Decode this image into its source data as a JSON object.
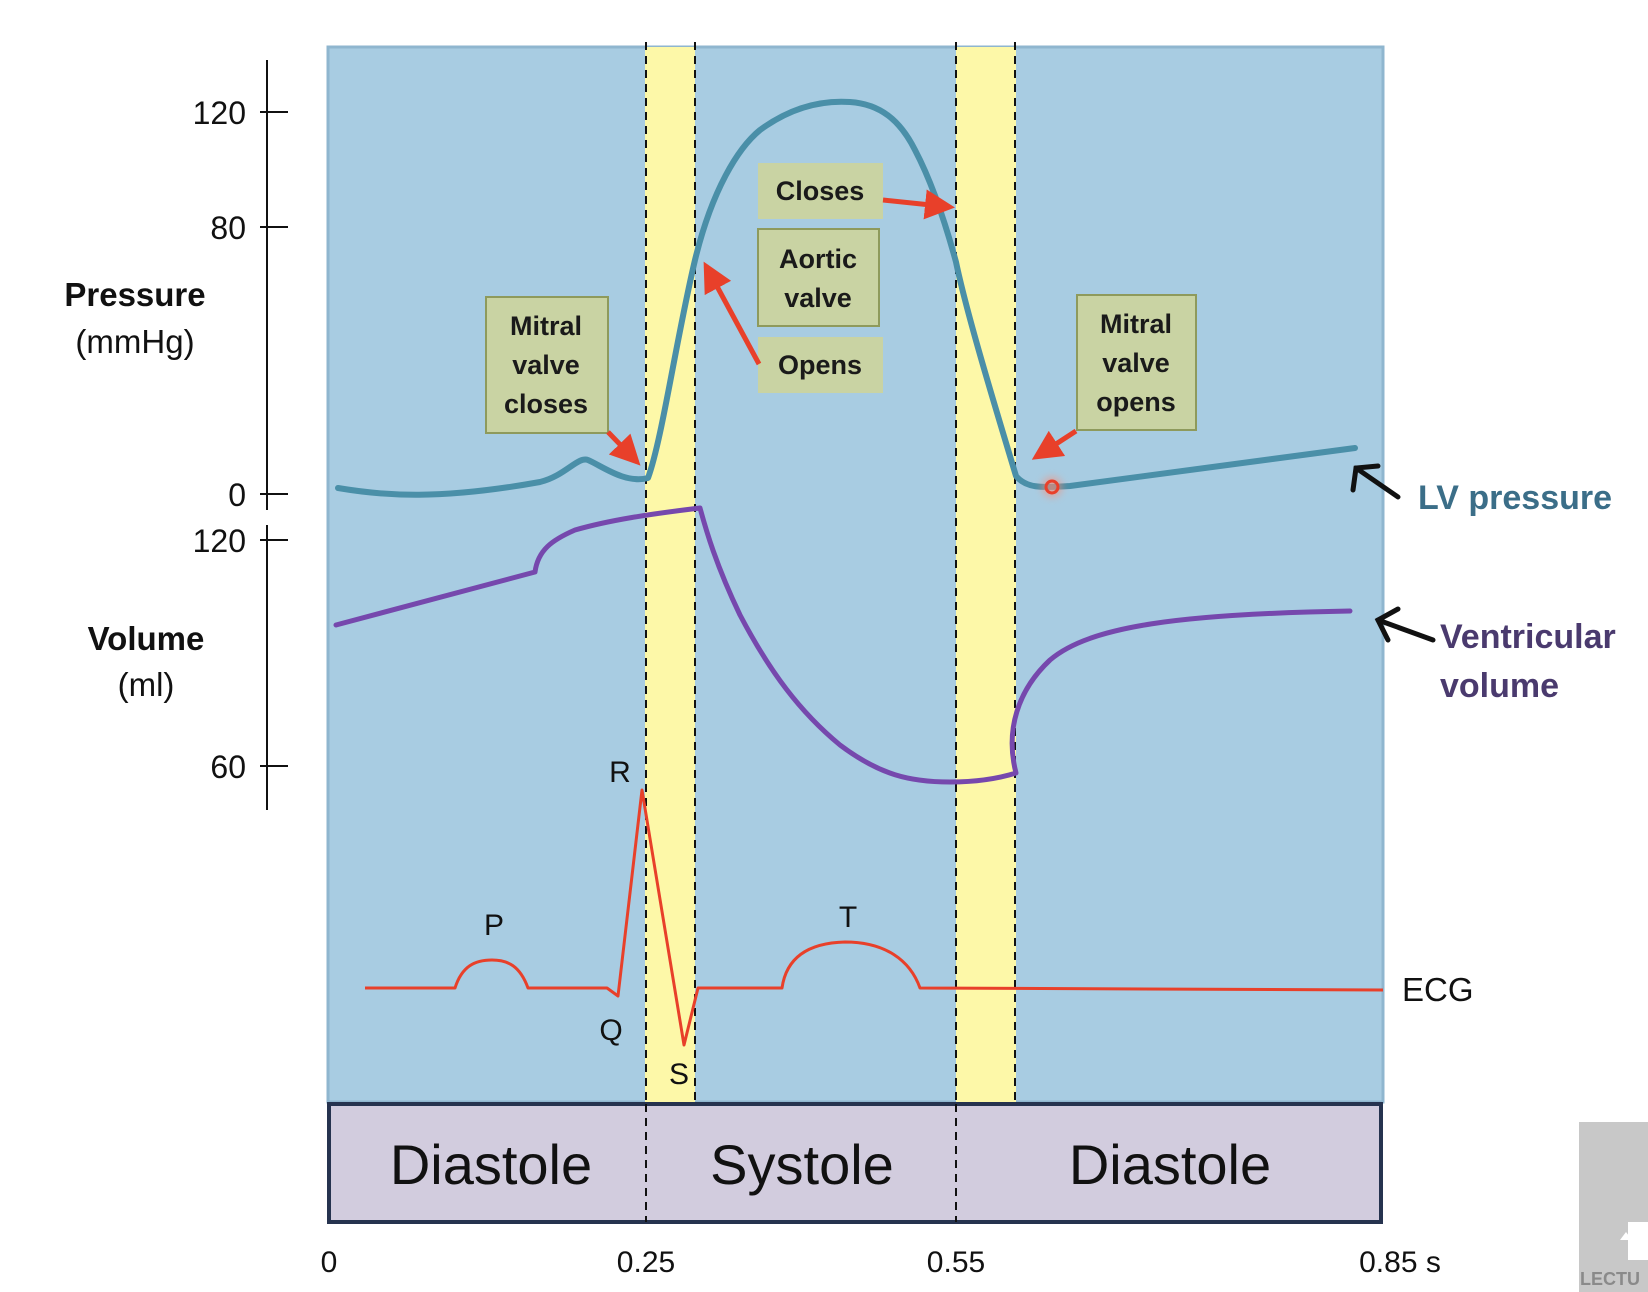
{
  "pressure_axis": {
    "title": "Pressure",
    "unit": "(mmHg)",
    "ticks": [
      "120",
      "80",
      "0"
    ]
  },
  "volume_axis": {
    "title": "Volume",
    "unit": "(ml)",
    "ticks": [
      "120",
      "60"
    ]
  },
  "annotations": {
    "mitral_closes": [
      "Mitral",
      "valve",
      "closes"
    ],
    "aortic_closes": "Closes",
    "aortic_valve": [
      "Aortic",
      "valve"
    ],
    "aortic_opens": "Opens",
    "mitral_opens": [
      "Mitral",
      "valve",
      "opens"
    ]
  },
  "series_labels": {
    "lv_pressure": "LV pressure",
    "ventricular_volume": [
      "Ventricular",
      "volume"
    ],
    "ecg": "ECG"
  },
  "ecg_waves": {
    "p": "P",
    "q": "Q",
    "r": "R",
    "s": "S",
    "t": "T"
  },
  "phases": [
    "Diastole",
    "Systole",
    "Diastole"
  ],
  "time_axis": [
    "0",
    "0.25",
    "0.55",
    "0.85 s"
  ],
  "colors": {
    "plot_background": "#a8cce2",
    "isovolumetric_band": "#fdf8a8",
    "lv_pressure": "#4a8fa8",
    "ventricular_volume": "#7648ad",
    "ecg": "#e8402a",
    "arrow": "#e8402a",
    "annotation_box": "#c9d3a3",
    "phase_box": "#d2ccde",
    "lv_pressure_label": "#3b6e88",
    "volume_label": "#4a3a6e"
  },
  "watermark": "LECTU"
}
